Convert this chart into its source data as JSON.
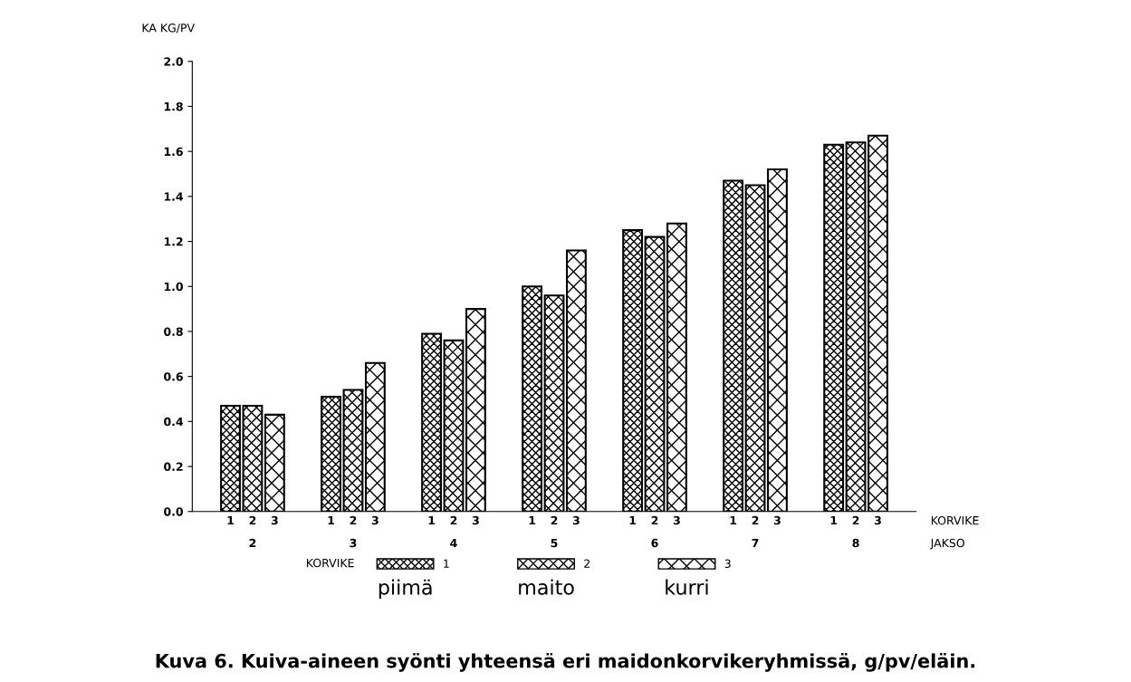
{
  "chart_data": {
    "type": "bar",
    "title": "Kuva 6. Kuiva-aineen syönti yhteensä eri maidonkorvikeryhmissä, g/pv/eläin.",
    "ylabel": "KA KG/PV",
    "xlabel": "JAKSO",
    "legend_title": "KORVIKE",
    "categories": [
      "2",
      "3",
      "4",
      "5",
      "6",
      "7",
      "8"
    ],
    "series": [
      {
        "name": "1",
        "color": "#000000",
        "values": [
          0.47,
          0.51,
          0.79,
          1.0,
          1.25,
          1.47,
          1.63
        ]
      },
      {
        "name": "2",
        "color": "#000000",
        "values": [
          0.47,
          0.54,
          0.76,
          0.96,
          1.22,
          1.45,
          1.64
        ]
      },
      {
        "name": "3",
        "color": "#000000",
        "values": [
          0.43,
          0.66,
          0.9,
          1.16,
          1.28,
          1.52,
          1.67
        ]
      }
    ],
    "annotations": [
      "KORVIKE",
      "piimä",
      "maito",
      "kurri"
    ],
    "ylim": [
      0,
      2.0
    ],
    "yticks": [
      {
        "value": 0,
        "label": "0.0"
      },
      {
        "value": 0.2,
        "label": "0.2"
      },
      {
        "value": 0.4,
        "label": "0.4"
      },
      {
        "value": 0.6,
        "label": "0.6"
      },
      {
        "value": 0.8,
        "label": "0.8"
      },
      {
        "value": 1.0,
        "label": "1.0"
      },
      {
        "value": 1.2,
        "label": "1.2"
      },
      {
        "value": 1.4,
        "label": "1.4"
      },
      {
        "value": 1.6,
        "label": "1.6"
      },
      {
        "value": 1.8,
        "label": "1.8"
      },
      {
        "value": 2.0,
        "label": "2.0"
      }
    ],
    "legend": "bottom",
    "grid": false
  }
}
